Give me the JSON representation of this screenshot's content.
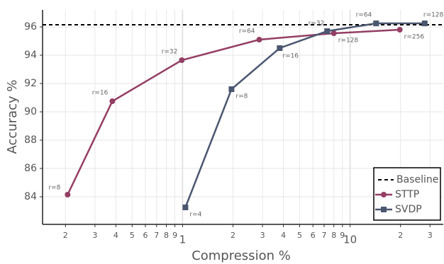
{
  "chart_data": {
    "type": "line",
    "xlabel": "Compression %",
    "ylabel": "Accuracy %",
    "xscale": "log",
    "xlim": [
      0.146,
      36
    ],
    "ylim": [
      82.05,
      97.2
    ],
    "xticks": [
      {
        "value": 0.2,
        "label": "2"
      },
      {
        "value": 0.3,
        "label": "3"
      },
      {
        "value": 0.4,
        "label": "4"
      },
      {
        "value": 0.5,
        "label": "5"
      },
      {
        "value": 0.6,
        "label": "6"
      },
      {
        "value": 0.7,
        "label": "7"
      },
      {
        "value": 0.8,
        "label": "8"
      },
      {
        "value": 0.9,
        "label": "9"
      },
      1,
      2,
      3,
      4,
      5,
      6,
      7,
      8,
      9,
      10,
      {
        "value": 20,
        "label": "2"
      },
      {
        "value": 30,
        "label": "3"
      }
    ],
    "yticks": [
      84,
      86,
      88,
      90,
      92,
      94,
      96
    ],
    "grid": true,
    "legend": "lower right",
    "baseline": {
      "name": "Baseline",
      "value": 96.15,
      "color": "#000000"
    },
    "series": [
      {
        "name": "STTP",
        "color": "#943e64",
        "marker": "circle",
        "x": [
          0.206,
          0.381,
          0.99,
          2.87,
          8.0,
          19.8
        ],
        "values": [
          84.15,
          90.75,
          93.65,
          95.1,
          95.55,
          95.8
        ],
        "labels": [
          "r=8",
          "r=16",
          "r=32",
          "r=64",
          "r=128",
          "r=256"
        ]
      },
      {
        "name": "SVDP",
        "color": "#4b5670",
        "marker": "square",
        "x": [
          1.04,
          1.96,
          3.8,
          7.3,
          14.3,
          27.9
        ],
        "values": [
          83.25,
          91.6,
          94.5,
          95.7,
          96.25,
          96.25
        ],
        "labels": [
          "r=4",
          "r=8",
          "r=16",
          "r=32",
          "r=64",
          "r=128"
        ]
      }
    ]
  }
}
